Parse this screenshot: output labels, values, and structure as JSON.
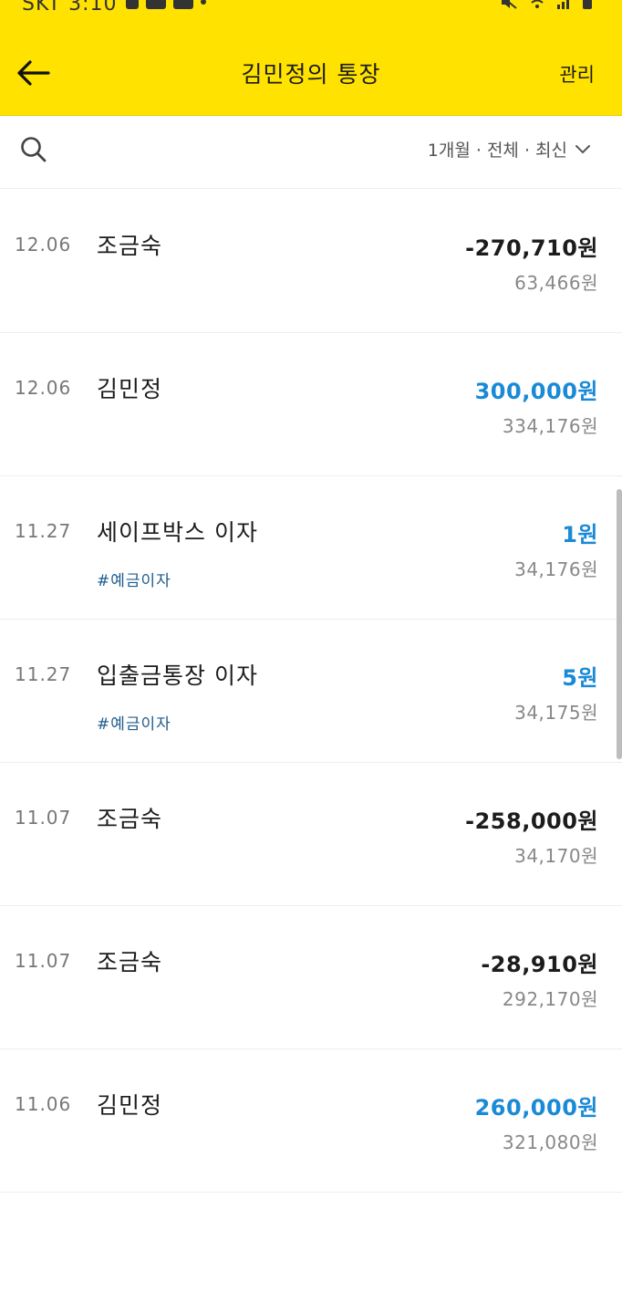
{
  "status_bar": {
    "carrier": "SKT",
    "time": "3:10"
  },
  "header": {
    "title": "김민정의 통장",
    "manage_label": "관리",
    "back_icon": "arrow-left-icon"
  },
  "filter": {
    "search_icon": "search-icon",
    "label": "1개월 · 전체 · 최신",
    "chevron_icon": "chevron-down-icon"
  },
  "colors": {
    "header_bg": "#ffe200",
    "deposit": "#1a8ad6",
    "withdraw": "#1c1c1c",
    "tag": "#1f5c8c"
  },
  "transactions": [
    {
      "date": "12.06",
      "name": "조금숙",
      "tag": "",
      "amount": "-270,710원",
      "balance": "63,466원",
      "type": "withdraw"
    },
    {
      "date": "12.06",
      "name": "김민정",
      "tag": "",
      "amount": "300,000원",
      "balance": "334,176원",
      "type": "deposit"
    },
    {
      "date": "11.27",
      "name": "세이프박스 이자",
      "tag": "#예금이자",
      "amount": "1원",
      "balance": "34,176원",
      "type": "deposit"
    },
    {
      "date": "11.27",
      "name": "입출금통장 이자",
      "tag": "#예금이자",
      "amount": "5원",
      "balance": "34,175원",
      "type": "deposit"
    },
    {
      "date": "11.07",
      "name": "조금숙",
      "tag": "",
      "amount": "-258,000원",
      "balance": "34,170원",
      "type": "withdraw"
    },
    {
      "date": "11.07",
      "name": "조금숙",
      "tag": "",
      "amount": "-28,910원",
      "balance": "292,170원",
      "type": "withdraw"
    },
    {
      "date": "11.06",
      "name": "김민정",
      "tag": "",
      "amount": "260,000원",
      "balance": "321,080원",
      "type": "deposit"
    }
  ]
}
